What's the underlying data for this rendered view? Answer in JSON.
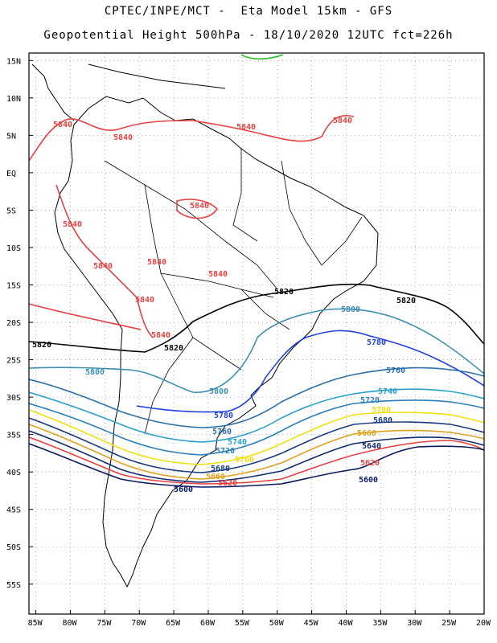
{
  "header": {
    "line1": "CPTEC/INPE/MCT -  Eta Model 15km - GFS",
    "line2": "Geopotential Height 500hPa - 18/10/2020 12UTC fct=226h"
  },
  "axes": {
    "lat_ticks": [
      "15N",
      "10N",
      "5N",
      "EQ",
      "5S",
      "10S",
      "15S",
      "20S",
      "25S",
      "30S",
      "35S",
      "40S",
      "45S",
      "50S",
      "55S"
    ],
    "lon_ticks": [
      "85W",
      "80W",
      "75W",
      "70W",
      "65W",
      "60W",
      "55W",
      "50W",
      "45W",
      "40W",
      "35W",
      "30W",
      "25W",
      "20W"
    ],
    "lon_range": [
      -86,
      -20
    ],
    "lat_range": [
      16,
      -59
    ],
    "grid": true
  },
  "contours": [
    {
      "value": 5840,
      "color": "#e84040",
      "labels": [
        "5840",
        "5840",
        "5840",
        "5840",
        "5840",
        "5840",
        "5840",
        "5840",
        "5840",
        "5840",
        "5840"
      ]
    },
    {
      "value": 5820,
      "color": "#000000",
      "labels": [
        "5820",
        "5820",
        "5820",
        "5820"
      ]
    },
    {
      "value": 5800,
      "color": "#3a8fb0",
      "labels": [
        "5800",
        "5800",
        "5800"
      ]
    },
    {
      "value": 5780,
      "color": "#2040e0",
      "labels": [
        "5780",
        "5780"
      ]
    },
    {
      "value": 5760,
      "color": "#2a6fa8",
      "labels": [
        "5760",
        "5760"
      ]
    },
    {
      "value": 5740,
      "color": "#2aa0c8",
      "labels": [
        "5740",
        "5740"
      ]
    },
    {
      "value": 5720,
      "color": "#2a7fb8",
      "labels": [
        "5720",
        "5720"
      ]
    },
    {
      "value": 5700,
      "color": "#f0e010",
      "labels": [
        "5700",
        "5700"
      ]
    },
    {
      "value": 5680,
      "color": "#1a3a80",
      "labels": [
        "5680",
        "5680"
      ]
    },
    {
      "value": 5660,
      "color": "#e0a020",
      "labels": [
        "5660",
        "5660"
      ]
    },
    {
      "value": 5640,
      "color": "#102a70",
      "labels": [
        "5640"
      ]
    },
    {
      "value": 5620,
      "color": "#e84040",
      "labels": [
        "5620",
        "5620"
      ]
    },
    {
      "value": 5600,
      "color": "#0a1a60",
      "labels": [
        "5600",
        "5600"
      ]
    }
  ],
  "colors": {
    "coast": "#000000",
    "grid": "#9a9a9a",
    "green_contour": "#20c020"
  }
}
